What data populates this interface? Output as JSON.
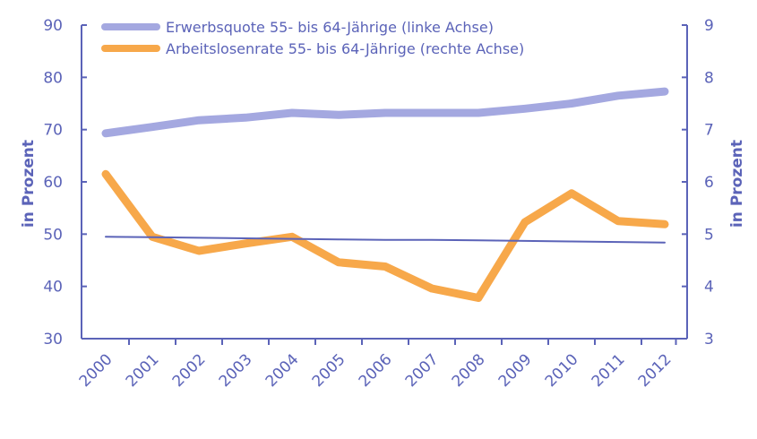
{
  "chart_data": {
    "type": "line",
    "x": [
      "2000",
      "2001",
      "2002",
      "2003",
      "2004",
      "2005",
      "2006",
      "2007",
      "2008",
      "2009",
      "2010",
      "2011",
      "2012"
    ],
    "series": [
      {
        "name": "Erwerbsquote 55- bis 64-Jährige (linke Achse)",
        "axis": "left",
        "color": "#a4a8e0",
        "values": [
          69.3,
          70.5,
          71.8,
          72.3,
          73.2,
          72.8,
          73.2,
          73.2,
          73.2,
          74.0,
          75.0,
          76.5,
          77.3
        ]
      },
      {
        "name": "Arbeitslosenrate 55- bis 64-Jährige (rechte Achse)",
        "axis": "right",
        "color": "#f7a84a",
        "values": [
          6.15,
          4.95,
          4.68,
          4.82,
          4.95,
          4.46,
          4.38,
          3.96,
          3.78,
          5.23,
          5.78,
          5.25,
          5.19
        ]
      },
      {
        "name": "",
        "axis": "left",
        "color": "#5b63b8",
        "values": [
          49.5,
          49.4,
          49.3,
          49.2,
          49.1,
          49.0,
          48.9,
          48.9,
          48.8,
          48.7,
          48.6,
          48.5,
          48.4
        ]
      }
    ],
    "ylabel_left": "in Prozent",
    "ylabel_right": "in Prozent",
    "ylim_left": [
      30,
      90
    ],
    "ylim_right": [
      3,
      9
    ],
    "yticks_left": [
      30,
      40,
      50,
      60,
      70,
      80,
      90
    ],
    "yticks_right": [
      3,
      4,
      5,
      6,
      7,
      8,
      9
    ],
    "grid": false,
    "legend_position": "top",
    "axis_color": "#5b63b8"
  }
}
